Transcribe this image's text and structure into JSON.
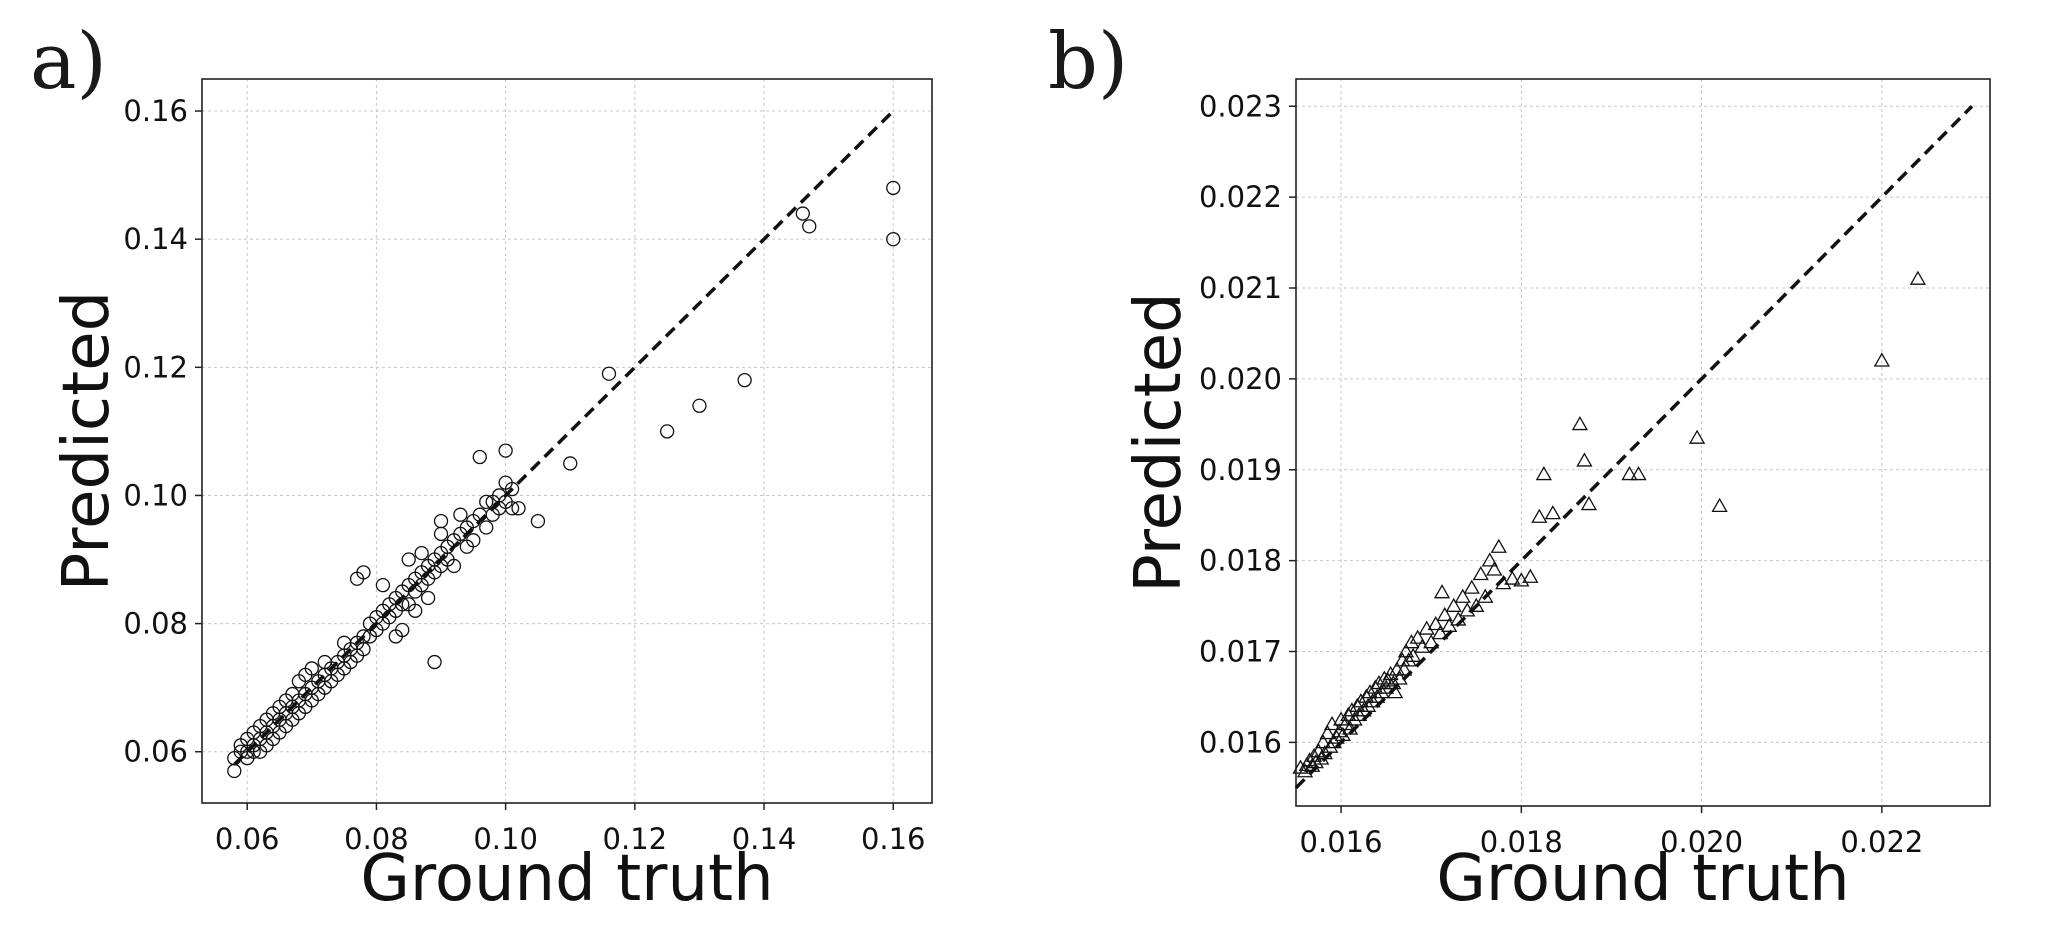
{
  "chart_data": [
    {
      "type": "scatter",
      "panel": "a)",
      "xlabel": "Ground truth",
      "ylabel": "Predicted",
      "xlim": [
        0.053,
        0.166
      ],
      "ylim": [
        0.052,
        0.165
      ],
      "xticks": [
        0.06,
        0.08,
        0.1,
        0.12,
        0.14,
        0.16
      ],
      "xtick_labels": [
        "0.06",
        "0.08",
        "0.10",
        "0.12",
        "0.14",
        "0.16"
      ],
      "yticks": [
        0.06,
        0.08,
        0.1,
        0.12,
        0.14,
        0.16
      ],
      "ytick_labels": [
        "0.06",
        "0.08",
        "0.10",
        "0.12",
        "0.14",
        "0.16"
      ],
      "grid": true,
      "marker": "circle",
      "reference_line": {
        "style": "dashed",
        "from": [
          0.058,
          0.058
        ],
        "to": [
          0.16,
          0.16
        ]
      },
      "series": [
        {
          "marker": "circle",
          "points": [
            [
              0.058,
              0.057
            ],
            [
              0.058,
              0.059
            ],
            [
              0.059,
              0.06
            ],
            [
              0.059,
              0.061
            ],
            [
              0.06,
              0.06
            ],
            [
              0.06,
              0.062
            ],
            [
              0.06,
              0.059
            ],
            [
              0.061,
              0.061
            ],
            [
              0.061,
              0.063
            ],
            [
              0.061,
              0.06
            ],
            [
              0.062,
              0.062
            ],
            [
              0.062,
              0.064
            ],
            [
              0.062,
              0.06
            ],
            [
              0.063,
              0.063
            ],
            [
              0.063,
              0.061
            ],
            [
              0.063,
              0.065
            ],
            [
              0.064,
              0.064
            ],
            [
              0.064,
              0.062
            ],
            [
              0.064,
              0.066
            ],
            [
              0.065,
              0.065
            ],
            [
              0.065,
              0.063
            ],
            [
              0.065,
              0.067
            ],
            [
              0.066,
              0.066
            ],
            [
              0.066,
              0.064
            ],
            [
              0.066,
              0.068
            ],
            [
              0.067,
              0.067
            ],
            [
              0.067,
              0.065
            ],
            [
              0.067,
              0.069
            ],
            [
              0.068,
              0.068
            ],
            [
              0.068,
              0.066
            ],
            [
              0.068,
              0.071
            ],
            [
              0.069,
              0.069
            ],
            [
              0.069,
              0.067
            ],
            [
              0.069,
              0.072
            ],
            [
              0.07,
              0.07
            ],
            [
              0.07,
              0.068
            ],
            [
              0.07,
              0.073
            ],
            [
              0.071,
              0.071
            ],
            [
              0.071,
              0.069
            ],
            [
              0.072,
              0.072
            ],
            [
              0.072,
              0.07
            ],
            [
              0.072,
              0.074
            ],
            [
              0.073,
              0.073
            ],
            [
              0.073,
              0.071
            ],
            [
              0.074,
              0.074
            ],
            [
              0.074,
              0.072
            ],
            [
              0.075,
              0.075
            ],
            [
              0.075,
              0.073
            ],
            [
              0.075,
              0.077
            ],
            [
              0.076,
              0.076
            ],
            [
              0.076,
              0.074
            ],
            [
              0.077,
              0.077
            ],
            [
              0.077,
              0.075
            ],
            [
              0.077,
              0.087
            ],
            [
              0.078,
              0.078
            ],
            [
              0.078,
              0.076
            ],
            [
              0.078,
              0.088
            ],
            [
              0.079,
              0.08
            ],
            [
              0.079,
              0.078
            ],
            [
              0.08,
              0.081
            ],
            [
              0.08,
              0.079
            ],
            [
              0.081,
              0.082
            ],
            [
              0.081,
              0.08
            ],
            [
              0.081,
              0.086
            ],
            [
              0.082,
              0.083
            ],
            [
              0.082,
              0.081
            ],
            [
              0.083,
              0.084
            ],
            [
              0.083,
              0.082
            ],
            [
              0.083,
              0.078
            ],
            [
              0.084,
              0.085
            ],
            [
              0.084,
              0.083
            ],
            [
              0.084,
              0.079
            ],
            [
              0.085,
              0.086
            ],
            [
              0.085,
              0.083
            ],
            [
              0.085,
              0.09
            ],
            [
              0.086,
              0.087
            ],
            [
              0.086,
              0.085
            ],
            [
              0.086,
              0.082
            ],
            [
              0.087,
              0.088
            ],
            [
              0.087,
              0.086
            ],
            [
              0.087,
              0.091
            ],
            [
              0.088,
              0.089
            ],
            [
              0.088,
              0.087
            ],
            [
              0.088,
              0.084
            ],
            [
              0.089,
              0.074
            ],
            [
              0.089,
              0.09
            ],
            [
              0.089,
              0.088
            ],
            [
              0.09,
              0.096
            ],
            [
              0.09,
              0.091
            ],
            [
              0.09,
              0.089
            ],
            [
              0.09,
              0.094
            ],
            [
              0.091,
              0.092
            ],
            [
              0.091,
              0.09
            ],
            [
              0.092,
              0.093
            ],
            [
              0.092,
              0.089
            ],
            [
              0.093,
              0.097
            ],
            [
              0.093,
              0.094
            ],
            [
              0.094,
              0.095
            ],
            [
              0.094,
              0.092
            ],
            [
              0.095,
              0.096
            ],
            [
              0.095,
              0.093
            ],
            [
              0.096,
              0.106
            ],
            [
              0.096,
              0.097
            ],
            [
              0.097,
              0.095
            ],
            [
              0.097,
              0.099
            ],
            [
              0.098,
              0.099
            ],
            [
              0.098,
              0.097
            ],
            [
              0.099,
              0.1
            ],
            [
              0.099,
              0.098
            ],
            [
              0.1,
              0.107
            ],
            [
              0.1,
              0.102
            ],
            [
              0.1,
              0.099
            ],
            [
              0.101,
              0.101
            ],
            [
              0.101,
              0.098
            ],
            [
              0.102,
              0.098
            ],
            [
              0.105,
              0.096
            ],
            [
              0.11,
              0.105
            ],
            [
              0.116,
              0.119
            ],
            [
              0.125,
              0.11
            ],
            [
              0.13,
              0.114
            ],
            [
              0.137,
              0.118
            ],
            [
              0.146,
              0.144
            ],
            [
              0.147,
              0.142
            ],
            [
              0.16,
              0.148
            ],
            [
              0.16,
              0.14
            ]
          ]
        }
      ]
    },
    {
      "type": "scatter",
      "panel": "b)",
      "xlabel": "Ground truth",
      "ylabel": "Predicted",
      "xlim": [
        0.0155,
        0.0232
      ],
      "ylim": [
        0.0153,
        0.0233
      ],
      "xticks": [
        0.016,
        0.018,
        0.02,
        0.022
      ],
      "xtick_labels": [
        "0.016",
        "0.018",
        "0.020",
        "0.022"
      ],
      "yticks": [
        0.016,
        0.017,
        0.018,
        0.019,
        0.02,
        0.021,
        0.022,
        0.023
      ],
      "ytick_labels": [
        "0.016",
        "0.017",
        "0.018",
        "0.019",
        "0.020",
        "0.021",
        "0.022",
        "0.023"
      ],
      "grid": true,
      "marker": "triangle",
      "reference_line": {
        "style": "dashed",
        "from": [
          0.0155,
          0.0155
        ],
        "to": [
          0.023,
          0.023
        ]
      },
      "series": [
        {
          "marker": "triangle",
          "points": [
            [
              0.01555,
              0.01572
            ],
            [
              0.0156,
              0.01568
            ],
            [
              0.01562,
              0.01575
            ],
            [
              0.01565,
              0.0158
            ],
            [
              0.01568,
              0.01574
            ],
            [
              0.0157,
              0.01585
            ],
            [
              0.01572,
              0.01578
            ],
            [
              0.01575,
              0.0159
            ],
            [
              0.01578,
              0.01582
            ],
            [
              0.0158,
              0.016
            ],
            [
              0.01582,
              0.01588
            ],
            [
              0.01585,
              0.0161
            ],
            [
              0.01588,
              0.01595
            ],
            [
              0.0159,
              0.0162
            ],
            [
              0.01592,
              0.016
            ],
            [
              0.01595,
              0.01605
            ],
            [
              0.01598,
              0.01612
            ],
            [
              0.016,
              0.01625
            ],
            [
              0.01602,
              0.01608
            ],
            [
              0.01605,
              0.0162
            ],
            [
              0.01608,
              0.0163
            ],
            [
              0.0161,
              0.01615
            ],
            [
              0.01612,
              0.01635
            ],
            [
              0.01615,
              0.01625
            ],
            [
              0.01618,
              0.0164
            ],
            [
              0.0162,
              0.0163
            ],
            [
              0.01622,
              0.01645
            ],
            [
              0.01625,
              0.01635
            ],
            [
              0.01628,
              0.0165
            ],
            [
              0.0163,
              0.0164
            ],
            [
              0.01632,
              0.01655
            ],
            [
              0.01635,
              0.01645
            ],
            [
              0.01638,
              0.0166
            ],
            [
              0.0164,
              0.0165
            ],
            [
              0.01642,
              0.01665
            ],
            [
              0.01645,
              0.01655
            ],
            [
              0.01648,
              0.0167
            ],
            [
              0.0165,
              0.0166
            ],
            [
              0.01652,
              0.01668
            ],
            [
              0.01655,
              0.01675
            ],
            [
              0.01658,
              0.01665
            ],
            [
              0.0166,
              0.01655
            ],
            [
              0.01662,
              0.0168
            ],
            [
              0.01665,
              0.0167
            ],
            [
              0.01668,
              0.0169
            ],
            [
              0.0167,
              0.0168
            ],
            [
              0.01672,
              0.017
            ],
            [
              0.01675,
              0.0169
            ],
            [
              0.01678,
              0.0171
            ],
            [
              0.0168,
              0.01695
            ],
            [
              0.01685,
              0.01715
            ],
            [
              0.0169,
              0.01705
            ],
            [
              0.01695,
              0.01725
            ],
            [
              0.017,
              0.0171
            ],
            [
              0.01705,
              0.0173
            ],
            [
              0.0171,
              0.0172
            ],
            [
              0.01712,
              0.01765
            ],
            [
              0.01715,
              0.0174
            ],
            [
              0.0172,
              0.01728
            ],
            [
              0.01725,
              0.0175
            ],
            [
              0.0173,
              0.01735
            ],
            [
              0.01735,
              0.0176
            ],
            [
              0.0174,
              0.01745
            ],
            [
              0.01745,
              0.0177
            ],
            [
              0.0175,
              0.0175
            ],
            [
              0.01755,
              0.01785
            ],
            [
              0.0176,
              0.0176
            ],
            [
              0.01765,
              0.018
            ],
            [
              0.0177,
              0.0179
            ],
            [
              0.01775,
              0.01815
            ],
            [
              0.0178,
              0.01775
            ],
            [
              0.0179,
              0.0178
            ],
            [
              0.018,
              0.01778
            ],
            [
              0.0181,
              0.01782
            ],
            [
              0.0182,
              0.01848
            ],
            [
              0.01825,
              0.01895
            ],
            [
              0.01835,
              0.01852
            ],
            [
              0.01865,
              0.0195
            ],
            [
              0.0187,
              0.0191
            ],
            [
              0.01875,
              0.01862
            ],
            [
              0.0192,
              0.01895
            ],
            [
              0.0193,
              0.01895
            ],
            [
              0.01995,
              0.01935
            ],
            [
              0.0202,
              0.0186
            ],
            [
              0.022,
              0.0202
            ],
            [
              0.0224,
              0.0211
            ]
          ]
        }
      ]
    }
  ]
}
